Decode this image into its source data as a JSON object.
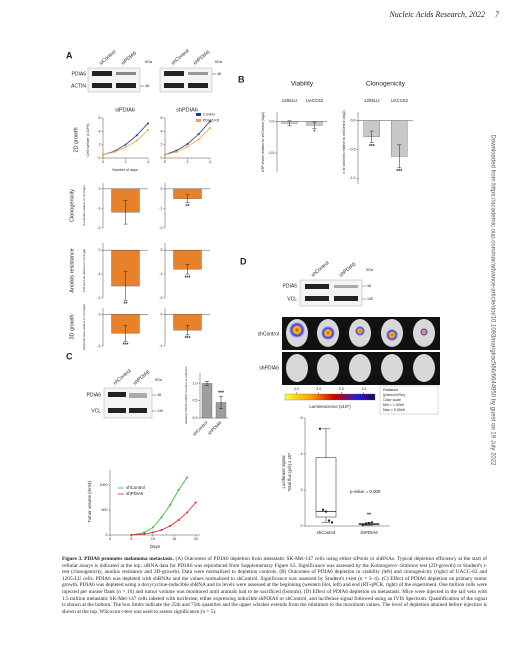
{
  "header": {
    "journal": "Nucleic Acids Research, 2022",
    "page": "7"
  },
  "sidebar": "Downloaded from https://academic.oup.com/nar/advance-article/doi/10.1093/nar/gkac566/6644950 by guest on 19 July 2022",
  "figure": {
    "A": {
      "label": "A",
      "kda": "KDa",
      "blots": [
        {
          "lanes": [
            "siControl",
            "siPDIA6"
          ],
          "rows": [
            "PDIA6",
            "ACTIN"
          ],
          "marker": "48"
        },
        {
          "lanes": [
            "shControl",
            "shPDIA6"
          ],
          "marker": "48"
        }
      ],
      "growth": {
        "row_label": "2D growth",
        "ylabel": "Cell number (x 10^5)",
        "xlabel": "Number of days",
        "x": [
          0,
          1,
          2,
          3,
          4
        ],
        "xlim": [
          0,
          4
        ],
        "xticks": [
          0,
          2,
          4
        ],
        "ylim": [
          0,
          6
        ],
        "yticks": [
          0,
          2,
          4,
          6
        ],
        "legend": [
          {
            "name": "Control",
            "color": "#1f3a93"
          },
          {
            "name": "PDIA6 KD",
            "color": "#f2a33a"
          }
        ],
        "charts": [
          {
            "title": "siPDIA6",
            "series": [
              [
                0.5,
                1.0,
                2.0,
                3.4,
                5.2
              ],
              [
                0.5,
                0.9,
                1.6,
                2.6,
                4.2
              ]
            ]
          },
          {
            "title": "shPDIA6",
            "series": [
              [
                0.5,
                1.1,
                2.1,
                3.6,
                5.5
              ],
              [
                0.5,
                0.9,
                1.7,
                2.8,
                4.5
              ]
            ]
          }
        ]
      },
      "bar_rows": [
        {
          "label": "Clonogenicity",
          "ylabel": "# colonies relative to ctrl (log2)",
          "ylim": [
            -2,
            0.3
          ],
          "yticks": [
            0,
            -1,
            -2
          ],
          "charts": [
            {
              "values": [
                -1.2
              ],
              "errors": [
                0.6
              ],
              "sig": [
                null
              ]
            },
            {
              "values": [
                -0.5
              ],
              "errors": [
                0.2
              ],
              "sig": [
                "**"
              ]
            }
          ]
        },
        {
          "label": "Anoikis resistance",
          "ylabel": "Cell survival relative to ctrl (log2)",
          "ylim": [
            -2,
            0.3
          ],
          "yticks": [
            0,
            -1,
            -2
          ],
          "charts": [
            {
              "values": [
                -1.5
              ],
              "errors": [
                0.6
              ],
              "sig": [
                "**"
              ]
            },
            {
              "values": [
                -0.8
              ],
              "errors": [
                0.2
              ],
              "sig": [
                "***"
              ]
            }
          ]
        },
        {
          "label": "3D growth",
          "ylabel": "Spheroid area relative to ctrl (log2)",
          "ylim": [
            -1,
            0.2
          ],
          "yticks": [
            0,
            -1
          ],
          "charts": [
            {
              "values": [
                -0.6
              ],
              "errors": [
                0.25
              ],
              "sig": [
                "***"
              ]
            },
            {
              "values": [
                -0.5
              ],
              "errors": [
                0.15
              ],
              "sig": [
                "***"
              ]
            }
          ]
        }
      ],
      "color": "#e8822a"
    },
    "B": {
      "label": "B",
      "color": "#c8c8c8",
      "charts": [
        {
          "title": "Viability",
          "ylabel": "ATP levels relative to shControl (log2)",
          "categories": [
            "1205LU",
            "UACC62"
          ],
          "values": [
            -0.03,
            -0.06
          ],
          "errors": [
            0.04,
            0.05
          ],
          "sig": [
            null,
            "*"
          ],
          "ylim": [
            -0.8,
            0.15
          ],
          "yticks": [
            {
              "value": 0,
              "label": "0.0"
            },
            {
              "value": -0.5,
              "label": "-0.5"
            }
          ]
        },
        {
          "title": "Clonogenicity",
          "ylabel": "# of colonies relative to shControl (log2)",
          "categories": [
            "1205LU",
            "UACC62"
          ],
          "values": [
            -0.28,
            -0.62
          ],
          "errors": [
            0.1,
            0.2
          ],
          "sig": [
            "***",
            "***"
          ],
          "ylim": [
            -1.1,
            0.15
          ],
          "yticks": [
            {
              "value": 0,
              "label": "0.0"
            },
            {
              "value": -0.5,
              "label": "-0.5"
            },
            {
              "value": -1.0,
              "label": "-1.0"
            }
          ]
        }
      ]
    },
    "C": {
      "label": "C",
      "kda": "KDa",
      "blot": {
        "lanes": [
          "shControl",
          "shPDIA6"
        ],
        "rows": [
          "PDIA6",
          "VCL"
        ],
        "markers": [
          "48",
          "130"
        ]
      },
      "mrna": {
        "ylabel": "Relative PDIA6 mRNA in tumor at endpoint",
        "categories": [
          "shControl",
          "shPDIA6"
        ],
        "values": [
          1.0,
          0.45
        ],
        "errors": [
          0.06,
          0.18
        ],
        "sig": [
          null,
          "***"
        ],
        "color": "#9e9e9e",
        "ylim": [
          0,
          1.3
        ],
        "yticks": [
          {
            "value": 0,
            "label": "0.0"
          },
          {
            "value": 0.5,
            "label": "0.5"
          },
          {
            "value": 1,
            "label": "1.0"
          }
        ]
      },
      "tumor": {
        "ylabel": "Tumor volume (mm3)",
        "xlabel": "Days",
        "xlim": [
          0,
          21
        ],
        "xticks": [
          0,
          5,
          10,
          15,
          20
        ],
        "ylim": [
          0,
          1300
        ],
        "yticks": [
          0,
          500,
          1000
        ],
        "series": [
          {
            "name": "shControl",
            "color": "#3aaa35",
            "x": [
              5,
              8,
              10,
              12,
              14,
              16,
              18
            ],
            "values": [
              0,
              50,
              150,
              350,
              600,
              900,
              1150
            ]
          },
          {
            "name": "shPDIA6",
            "color": "#e02020",
            "x": [
              5,
              8,
              10,
              12,
              14,
              16,
              18,
              20
            ],
            "values": [
              0,
              20,
              50,
              100,
              180,
              300,
              450,
              650
            ]
          }
        ]
      }
    },
    "D": {
      "label": "D",
      "kda": "KDa",
      "blot": {
        "lanes": [
          "shControl",
          "shPDIA6"
        ],
        "rows": [
          "PDIA6",
          "VCL"
        ],
        "markers": [
          "48",
          "135"
        ]
      },
      "mice_rows": [
        "shControl",
        "shPDIA6"
      ],
      "colorbar": {
        "ticks": [
          {
            "value": 4,
            "label": "4.0"
          },
          {
            "value": 3,
            "label": "3.0"
          },
          {
            "value": 2,
            "label": "2.0"
          },
          {
            "value": 1,
            "label": "1.0"
          }
        ],
        "lim": [
          4.5,
          0.5
        ],
        "label": "Luminescence (x10⁶)",
        "legend": [
          "Radiance",
          "(p/sec/cm²/sr)",
          "Color scale",
          "Min = 1.00e6",
          "Max = 5.00e6"
        ]
      },
      "box": {
        "ylabel": [
          "Luciferase signal",
          "Total flux (p/s) x 10⁸"
        ],
        "categories": [
          "shControl",
          "shPDIA6"
        ],
        "ylim": [
          0,
          6
        ],
        "yticks": [
          0,
          2,
          4,
          6
        ],
        "pvalue": "p-value = 0.008",
        "sig": "**",
        "boxes": [
          {
            "min": 0.2,
            "q1": 0.5,
            "median": 0.8,
            "q3": 3.8,
            "max": 5.4,
            "points": [
              5.4,
              0.9,
              0.8,
              0.3,
              0.2
            ]
          },
          {
            "min": 0.05,
            "q1": 0.08,
            "median": 0.1,
            "q3": 0.15,
            "max": 0.2,
            "points": [
              0.05,
              0.1,
              0.15,
              0.2
            ]
          }
        ]
      }
    }
  },
  "caption": {
    "label": "Figure 3.",
    "title": "PDIA6 promotes melanoma metastasis.",
    "text": "(A) Outcomes of PDIA6 depletion from metastatic SK-Mel-147 cells using either siPools or shRNAs. Typical depletion efficiency at the start of cellular assays is indicated at the top. siRNA data for PDIA6 was reproduced from Supplementary Figure S3. Significance was assessed by the Kolmogorov–Smirnov test (2D-growth) or Student's t-test (clonogenicity, anoikis resistance and 3D-growth). Data were normalized to depletion controls. (B) Outcomes of PDIA6 depletion in viability (left) and clonogenicity (right) of UACC-62 and 1205-LU cells. PDIA6 was depleted with shRNAs and the values normalized to shControl. Significance was assessed by Student's t-test (n = 3–4). (C) Effect of PDIA6 depletion on primary tumor growth. PDIA6 was depleted using a doxycycline-inducible shRNA and its levels were assessed at the beginning (western blot, left) and end (RT-qPCR, right) of the experiment. One million cells were injected per mouse flank (n = 10) and tumor volume was monitored until animals had to be sacrificed (bottom). (D) Effect of PDIA6 depletion on metastasis. Mice were injected in the tail vein with 1.5 million metastatic SK-Mel-147 cells labeled with luciferase, either expressing inducible shPDIA6 or shControl, and luciferase signal followed using an IVIS Spectrum. Quantification of the signal is shown at the bottom. The box limits indicate the 25th and 75th quantiles and the upper whisker extends from the minimum to the maximum values. The level of depletion attained before injection is shown at the top. Wilcoxon t-test was used to assess significance (n = 5)."
  }
}
